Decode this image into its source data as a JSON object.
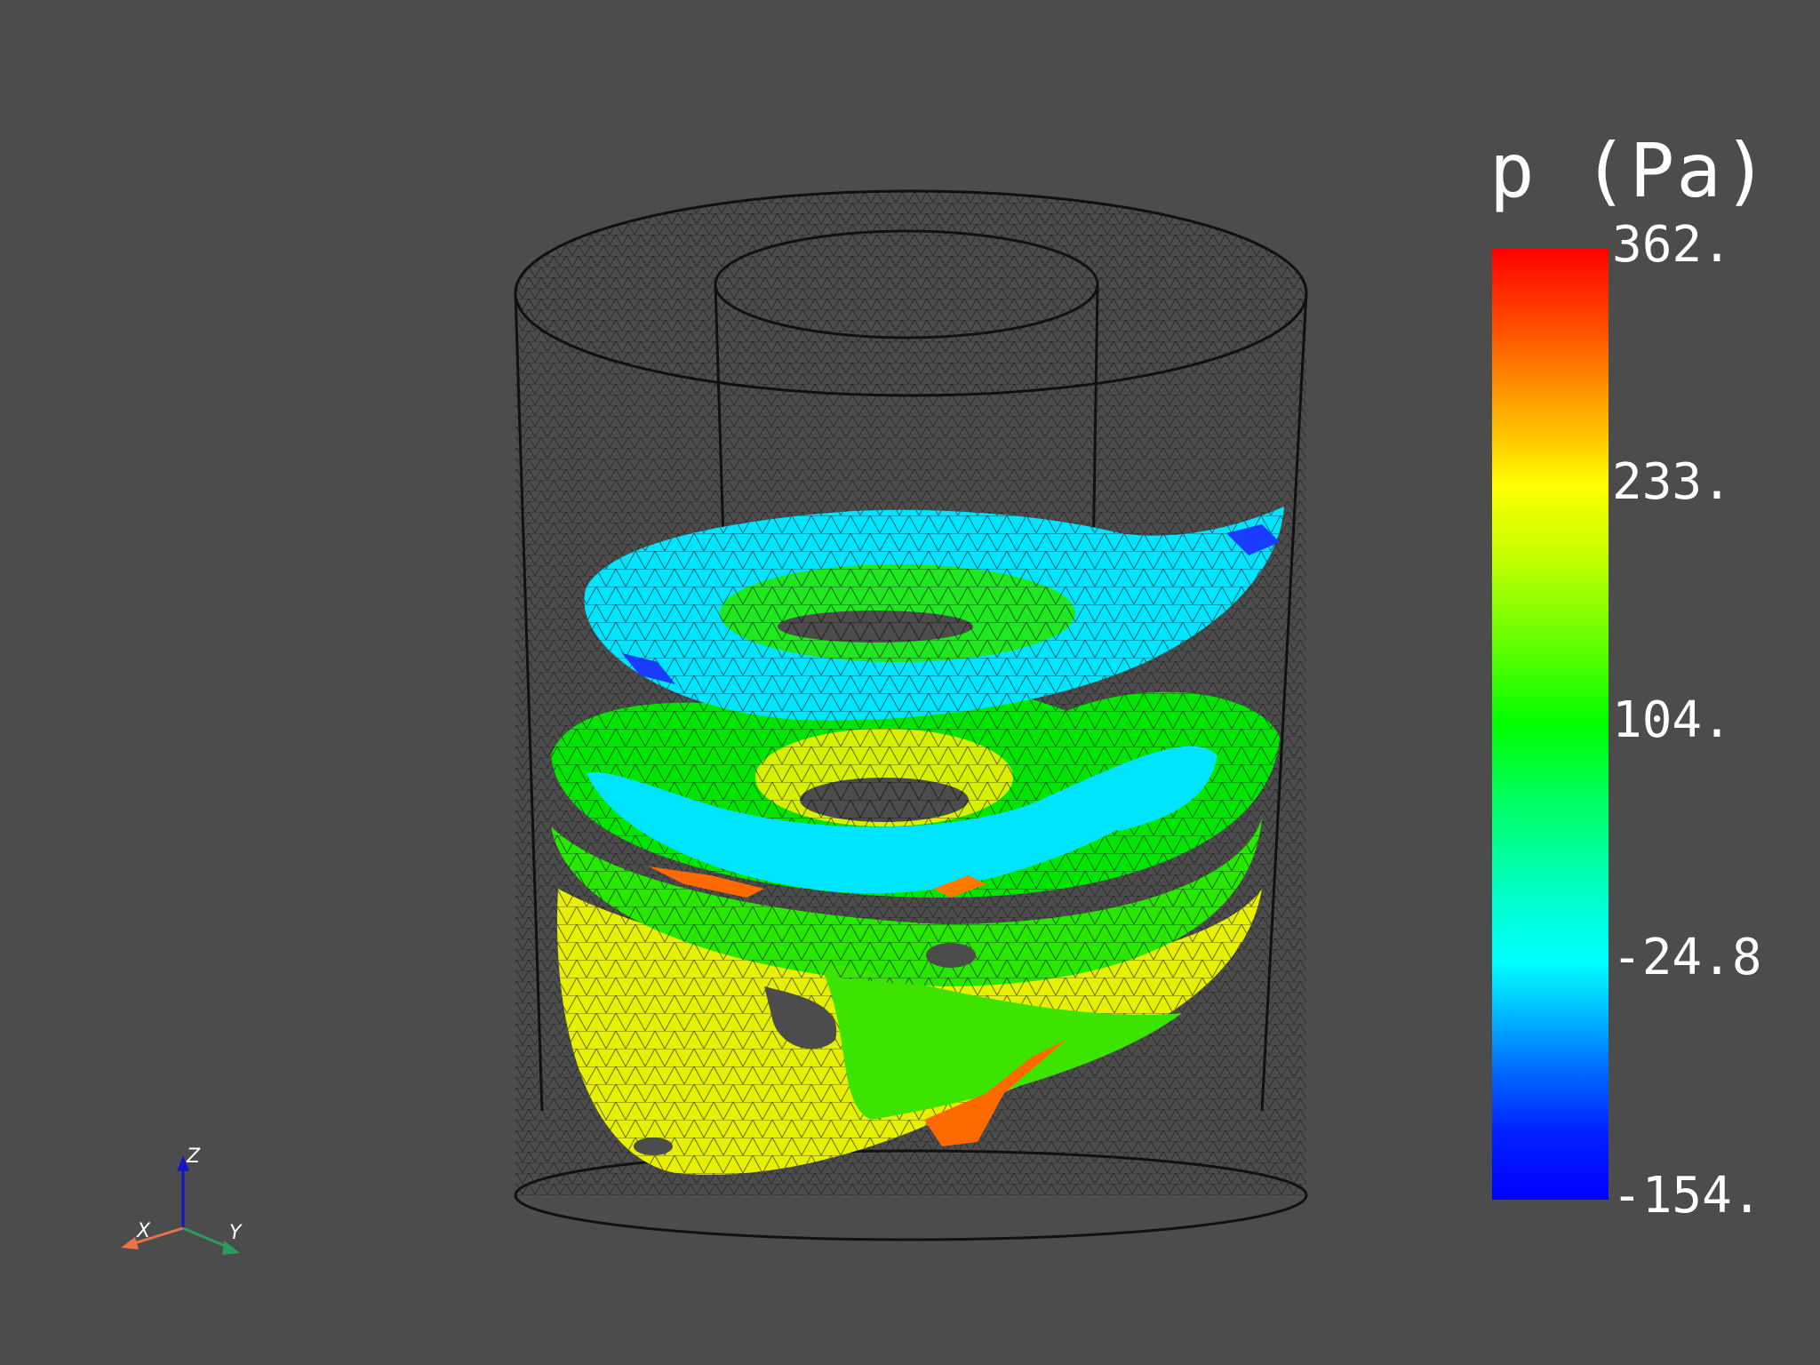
{
  "scalar_bar": {
    "title": "p (Pa)",
    "labels": [
      "362.",
      "233.",
      "104.",
      "-24.8",
      "-154."
    ],
    "range": [
      -154,
      362
    ],
    "colormap": "jet"
  },
  "orientation_axes": {
    "x_label": "X",
    "y_label": "Y",
    "z_label": "Z",
    "x_color": "#e8734a",
    "y_color": "#2e9a5c",
    "z_color": "#1414c8"
  },
  "colors": {
    "background": "#4c4c4c",
    "wireframe": "#000000",
    "cyan": "#00e5ff",
    "green": "#00e600",
    "lime": "#b4f000",
    "yellow": "#e6f000",
    "orange": "#ff6a00",
    "blue": "#1a3cff"
  }
}
